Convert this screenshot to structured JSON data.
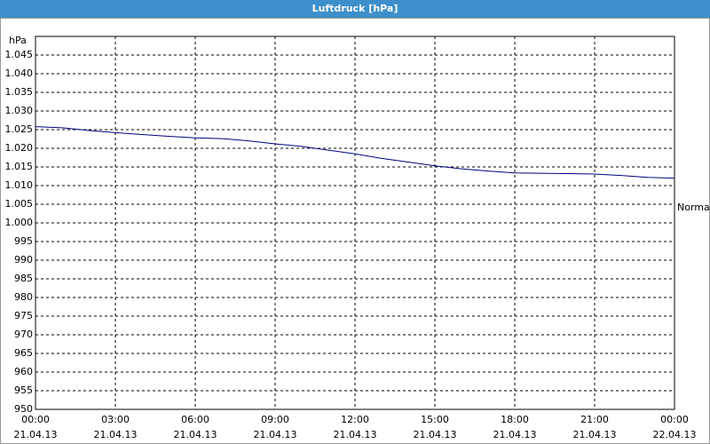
{
  "chart_data": {
    "type": "line",
    "title": "Luftdruck [hPa]",
    "y_label": "hPa",
    "x": [
      0,
      1,
      2,
      3,
      4,
      5,
      6,
      7,
      8,
      9,
      10,
      11,
      12,
      13,
      14,
      15,
      16,
      17,
      18,
      19,
      20,
      21,
      22,
      23,
      24
    ],
    "series": [
      {
        "name": "Normal",
        "color": "#000080",
        "values": [
          1025.8,
          1025.5,
          1024.8,
          1024.2,
          1023.7,
          1023.2,
          1022.8,
          1022.6,
          1022,
          1021.2,
          1020.5,
          1019.5,
          1018.5,
          1017.3,
          1016.3,
          1015.3,
          1014.5,
          1013.9,
          1013.4,
          1013.3,
          1013.2,
          1013.1,
          1012.7,
          1012.2,
          1012
        ]
      }
    ],
    "xlim": [
      0,
      24
    ],
    "xticks": [
      {
        "value": 0,
        "label": "00:00 21.04.13"
      },
      {
        "value": 3,
        "label": "03:00 21.04.13"
      },
      {
        "value": 6,
        "label": "06:00 21.04.13"
      },
      {
        "value": 9,
        "label": "09:00 21.04.13"
      },
      {
        "value": 12,
        "label": "12:00 21.04.13"
      },
      {
        "value": 15,
        "label": "15:00 21.04.13"
      },
      {
        "value": 18,
        "label": "18:00 21.04.13"
      },
      {
        "value": 21,
        "label": "21:00 21.04.13"
      },
      {
        "value": 24,
        "label": "00:00 22.04.13"
      }
    ],
    "ylim": [
      950,
      1050
    ],
    "yticks": [
      950,
      955,
      960,
      965,
      970,
      975,
      980,
      985,
      990,
      995,
      {
        "value": 1000,
        "label": "1.000"
      },
      {
        "value": 1005,
        "label": "1.005"
      },
      {
        "value": 1010,
        "label": "1.010"
      },
      {
        "value": 1015,
        "label": "1.015"
      },
      {
        "value": 1020,
        "label": "1.020"
      },
      {
        "value": 1025,
        "label": "1.025"
      },
      {
        "value": 1030,
        "label": "1.030"
      },
      {
        "value": 1035,
        "label": "1.035"
      },
      {
        "value": 1040,
        "label": "1.040"
      },
      {
        "value": 1045,
        "label": "1.045"
      }
    ],
    "grid": true
  }
}
